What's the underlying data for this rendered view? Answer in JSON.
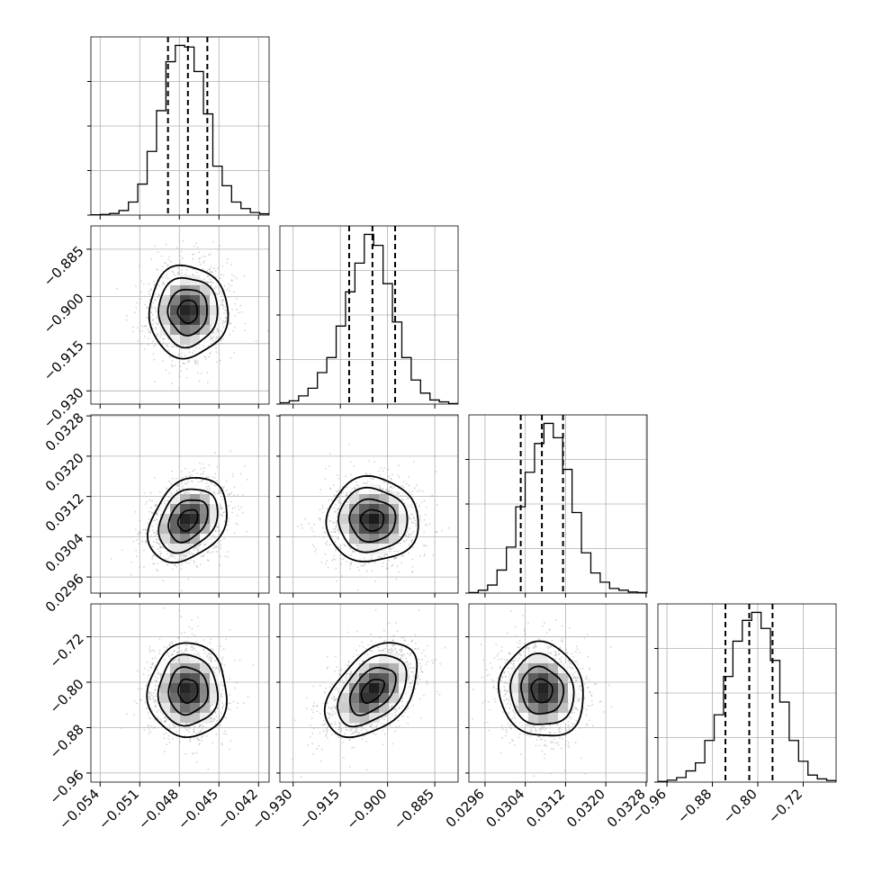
{
  "chart_data": {
    "type": "corner",
    "grid": true,
    "n_dim": 4,
    "tick_labels": {
      "x": [
        [
          "−0.054",
          "−0.051",
          "−0.048",
          "−0.045",
          "−0.042"
        ],
        [
          "−0.930",
          "−0.915",
          "−0.900",
          "−0.885"
        ],
        [
          "0.0296",
          "0.0304",
          "0.0312",
          "0.0320",
          "0.0328"
        ],
        [
          "−0.96",
          "−0.88",
          "−0.80",
          "−0.72"
        ]
      ],
      "y": [
        [],
        [
          "−0.885",
          "−0.900",
          "−0.915",
          "−0.930"
        ],
        [
          "0.0328",
          "0.0320",
          "0.0312",
          "0.0304",
          "0.0296"
        ],
        [
          "−0.72",
          "−0.80",
          "−0.88",
          "−0.96"
        ]
      ]
    },
    "parameters": [
      {
        "ticks": [
          -0.054,
          -0.051,
          -0.048,
          -0.045,
          -0.042
        ],
        "range": [
          -0.0547,
          -0.0412
        ],
        "quantiles": [
          -0.04886,
          -0.04735,
          -0.04588
        ],
        "hist_counts": [
          1,
          2,
          5,
          14,
          40,
          95,
          195,
          320,
          470,
          520,
          515,
          440,
          310,
          150,
          90,
          40,
          20,
          8,
          4
        ]
      },
      {
        "ticks": [
          -0.93,
          -0.915,
          -0.9,
          -0.885
        ],
        "range": [
          -0.9342,
          -0.8776
        ],
        "quantiles": [
          -0.9122,
          -0.9048,
          -0.8976
        ],
        "hist_counts": [
          5,
          12,
          30,
          58,
          115,
          170,
          285,
          410,
          515,
          620,
          580,
          440,
          300,
          170,
          88,
          40,
          15,
          8,
          2
        ]
      },
      {
        "ticks": [
          0.0296,
          0.0304,
          0.0312,
          0.032,
          0.0328
        ],
        "range": [
          0.02928,
          0.03282
        ],
        "quantiles": [
          0.03031,
          0.03073,
          0.03115
        ],
        "hist_counts": [
          2,
          10,
          28,
          80,
          160,
          300,
          420,
          520,
          590,
          540,
          430,
          280,
          140,
          70,
          38,
          16,
          10,
          4,
          2
        ]
      },
      {
        "ticks": [
          -0.96,
          -0.88,
          -0.8,
          -0.72
        ],
        "range": [
          -0.976,
          -0.662
        ],
        "quantiles": [
          -0.857,
          -0.815,
          -0.774
        ],
        "hist_counts": [
          2,
          6,
          14,
          35,
          60,
          130,
          210,
          330,
          440,
          505,
          530,
          480,
          380,
          250,
          130,
          65,
          22,
          10,
          5
        ]
      }
    ],
    "correlations": [
      [
        1.0,
        0.0,
        0.3,
        0.0
      ],
      [
        0.0,
        1.0,
        0.0,
        0.45
      ],
      [
        0.3,
        0.0,
        1.0,
        -0.08
      ],
      [
        0.0,
        0.45,
        -0.08,
        1.0
      ]
    ],
    "contour_levels_sigma": [
      0.5,
      1.0,
      1.5,
      2.0
    ],
    "colors": {
      "line": "#000000",
      "grid": "#b0b0b0",
      "points": "#a0a0a0"
    }
  }
}
